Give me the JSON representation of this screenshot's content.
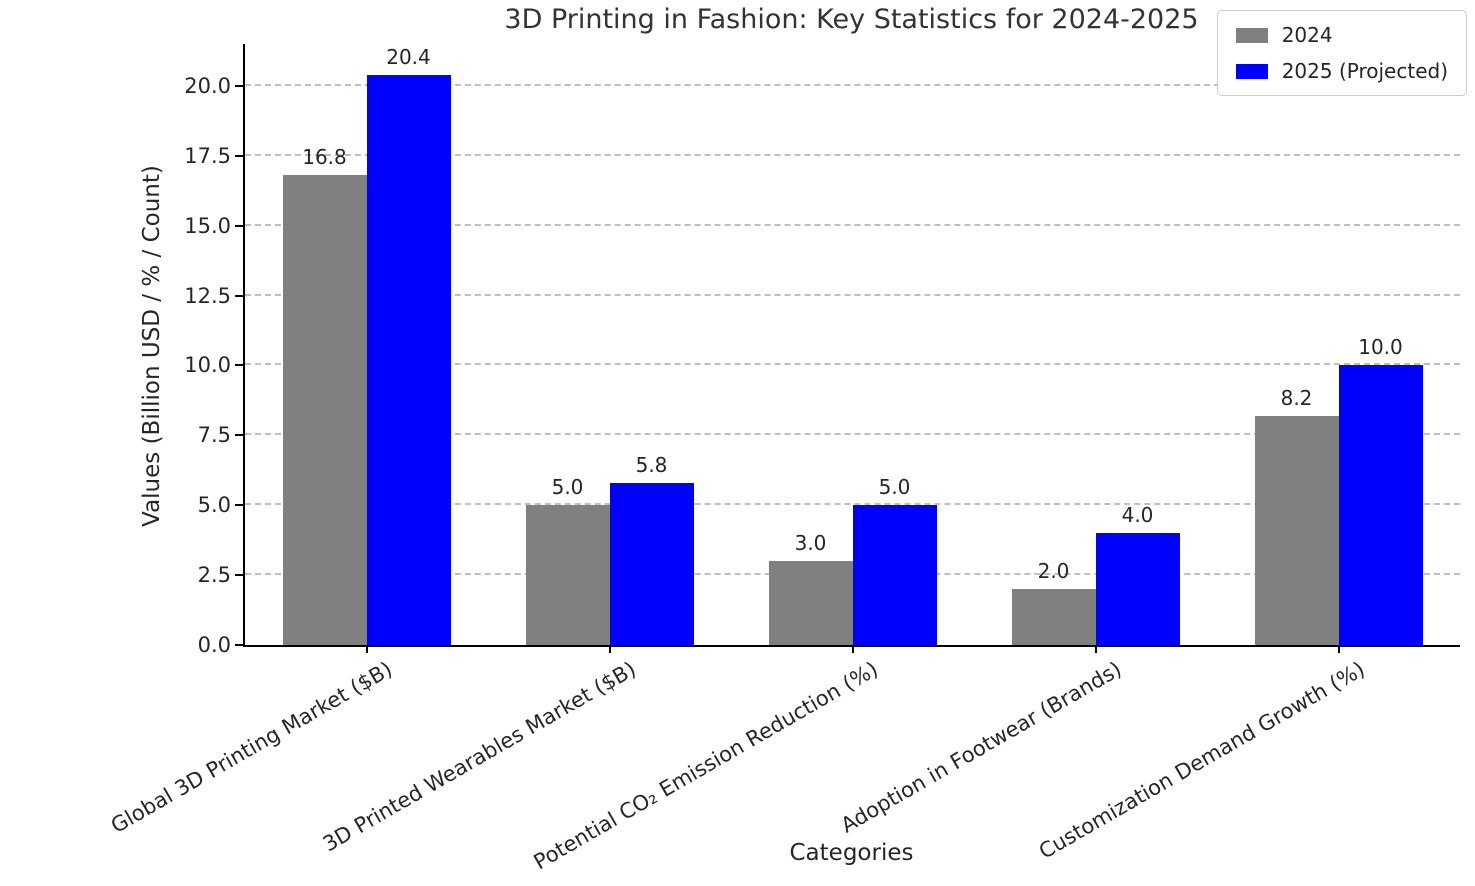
{
  "chart_data": {
    "type": "bar",
    "title": "3D Printing in Fashion: Key Statistics for 2024-2025",
    "xlabel": "Categories",
    "ylabel": "Values (Billion USD / % / Count)",
    "categories": [
      "Global 3D Printing Market ($B)",
      "3D Printed Wearables Market ($B)",
      "Potential CO₂ Emission Reduction (%)",
      "Adoption in Footwear (Brands)",
      "Customization Demand Growth (%)"
    ],
    "series": [
      {
        "name": "2024",
        "color": "#808080",
        "values": [
          16.8,
          5.0,
          3.0,
          2.0,
          8.2
        ]
      },
      {
        "name": "2025 (Projected)",
        "color": "#0000ff",
        "values": [
          20.4,
          5.8,
          5.0,
          4.0,
          10.0
        ]
      }
    ],
    "ylim": [
      0,
      21.5
    ],
    "yticks": [
      0.0,
      2.5,
      5.0,
      7.5,
      10.0,
      12.5,
      15.0,
      17.5,
      20.0
    ],
    "grid": true,
    "legend_position": "upper right",
    "value_label_decimals": 1
  }
}
